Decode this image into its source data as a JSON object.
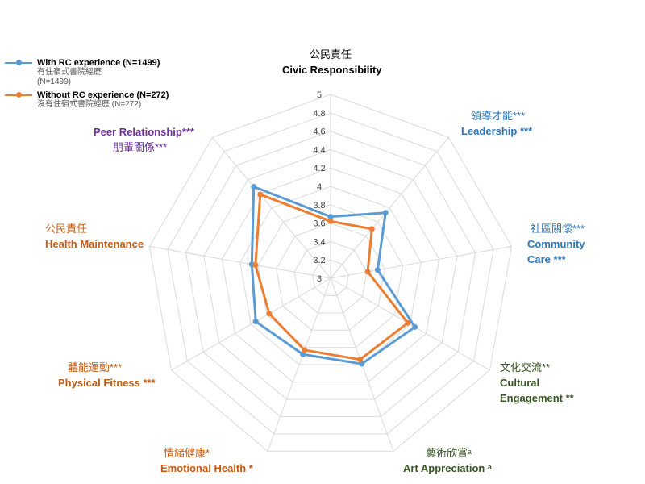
{
  "legend": [
    {
      "name": "With RC experience (N=1499)",
      "sub1": "有住宿式書院經歷",
      "sub2": "(N=1499)",
      "color": "#5b9bd5"
    },
    {
      "name": "Without RC experience (N=272)",
      "sub1": "沒有住宿式書院經歷 (N=272)",
      "sub2": "",
      "color": "#ed7d31"
    }
  ],
  "labels": {
    "civic": {
      "zh": "公民責任",
      "en1": "Civic Responsibility",
      "en2": ""
    },
    "leadership": {
      "zh": "領導才能***",
      "en1": "Leadership ***",
      "en2": ""
    },
    "community": {
      "zh": "社區關懷***",
      "en1": "Community",
      "en2": "Care ***"
    },
    "cultural": {
      "zh": "文化交流**",
      "en1": "Cultural",
      "en2": "Engagement **"
    },
    "art": {
      "zh": "藝術欣賞ᵃ",
      "en1": "Art Appreciation ᵃ",
      "en2": ""
    },
    "emotional": {
      "zh": "情緒健康*",
      "en1": "Emotional Health *",
      "en2": ""
    },
    "physical": {
      "zh": "體能運動***",
      "en1": "Physical Fitness ***",
      "en2": ""
    },
    "health": {
      "zh": "公民責任",
      "en1": "Health Maintenance",
      "en2": ""
    },
    "peer": {
      "zh": "朋輩關係***",
      "en1": "Peer Relationship***",
      "en2": ""
    }
  },
  "chart_data": {
    "type": "radar",
    "axes": [
      "Civic Responsibility",
      "Leadership",
      "Community Care",
      "Cultural Engagement",
      "Art Appreciation",
      "Emotional Health",
      "Physical Fitness",
      "Health Maintenance",
      "Peer Relationship"
    ],
    "r_ticks": [
      "3",
      "3.2",
      "3.4",
      "3.6",
      "3.8",
      "4",
      "4.2",
      "4.4",
      "4.6",
      "4.8",
      "5"
    ],
    "rlim": [
      3,
      5
    ],
    "grid": true,
    "legend_position": "top-left",
    "series": [
      {
        "name": "With RC experience (N=1499)",
        "color": "#5b9bd5",
        "values": [
          3.67,
          3.93,
          3.52,
          4.06,
          3.99,
          3.88,
          3.94,
          3.87,
          4.3
        ]
      },
      {
        "name": "Without RC experience (N=272)",
        "color": "#ed7d31",
        "values": [
          3.62,
          3.7,
          3.41,
          3.97,
          3.94,
          3.83,
          3.77,
          3.83,
          4.19
        ]
      }
    ]
  }
}
